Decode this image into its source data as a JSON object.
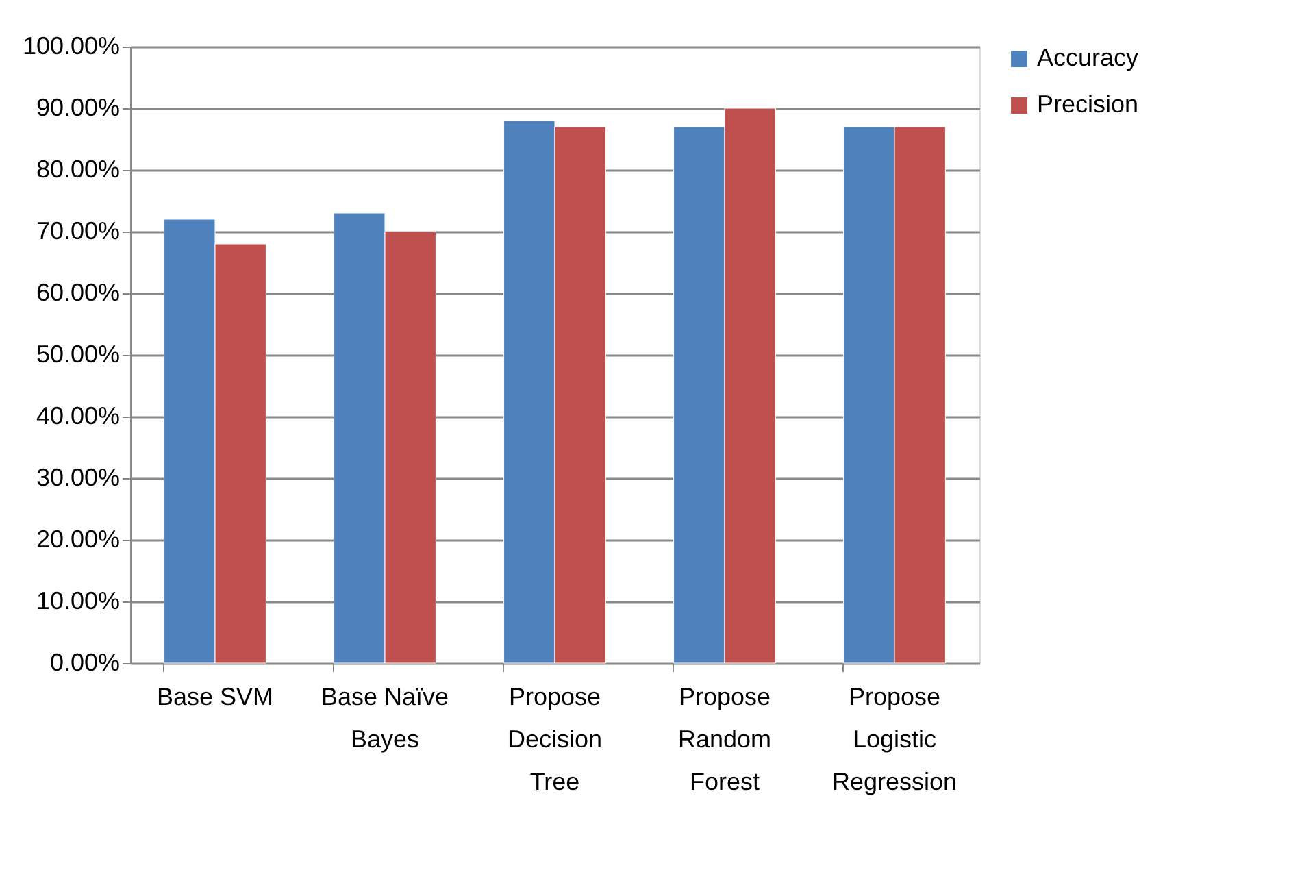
{
  "chart_data": {
    "type": "bar",
    "categories": [
      "Base SVM",
      "Base Naïve Bayes",
      "Propose Decision Tree",
      "Propose Random Forest",
      "Propose Logistic Regression"
    ],
    "series": [
      {
        "name": "Accuracy",
        "color": "#4f81bd",
        "values": [
          72,
          73,
          88,
          87,
          87
        ]
      },
      {
        "name": "Precision",
        "color": "#c0504d",
        "values": [
          68,
          70,
          87,
          90,
          87
        ]
      }
    ],
    "ylim": [
      0,
      100
    ],
    "yticks": [
      {
        "value": 0,
        "label": "0.00%"
      },
      {
        "value": 10,
        "label": "10.00%"
      },
      {
        "value": 20,
        "label": "20.00%"
      },
      {
        "value": 30,
        "label": "30.00%"
      },
      {
        "value": 40,
        "label": "40.00%"
      },
      {
        "value": 50,
        "label": "50.00%"
      },
      {
        "value": 60,
        "label": "60.00%"
      },
      {
        "value": 70,
        "label": "70.00%"
      },
      {
        "value": 80,
        "label": "80.00%"
      },
      {
        "value": 90,
        "label": "90.00%"
      },
      {
        "value": 100,
        "label": "100.00%"
      }
    ],
    "grid": "y",
    "legend": "right"
  }
}
